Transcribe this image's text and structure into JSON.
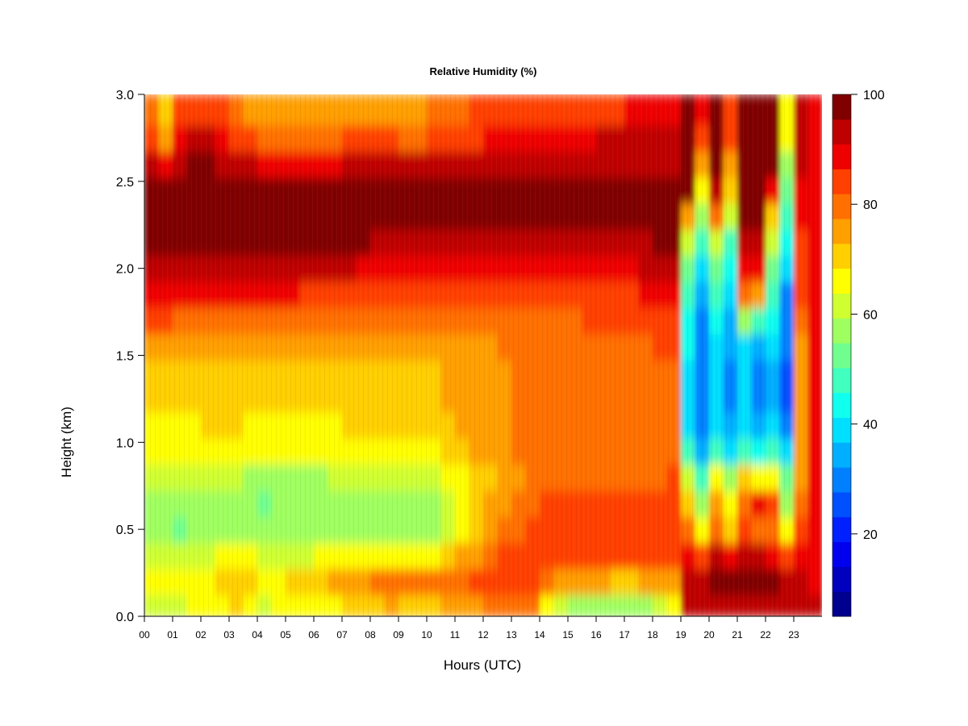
{
  "chart_data": {
    "type": "heatmap",
    "title": "Relative Humidity (%)",
    "xlabel": "Hours (UTC)",
    "ylabel": "Height (km)",
    "x_ticks": [
      "00",
      "01",
      "02",
      "03",
      "04",
      "05",
      "06",
      "07",
      "08",
      "09",
      "10",
      "11",
      "12",
      "13",
      "14",
      "15",
      "16",
      "17",
      "18",
      "19",
      "20",
      "21",
      "22",
      "23"
    ],
    "y_ticks": [
      "0.0",
      "0.5",
      "1.0",
      "1.5",
      "2.0",
      "2.5",
      "3.0"
    ],
    "xlim": [
      0,
      24
    ],
    "ylim": [
      0,
      3
    ],
    "colorbar": {
      "min": 5,
      "max": 100,
      "tick_labels": [
        "20",
        "40",
        "60",
        "80",
        "100"
      ],
      "tick_values": [
        20,
        40,
        60,
        80,
        100
      ],
      "levels": [
        {
          "lo": 5,
          "hi": 10,
          "color": "#00008F"
        },
        {
          "lo": 10,
          "hi": 15,
          "color": "#0000BF"
        },
        {
          "lo": 15,
          "hi": 20,
          "color": "#0000EF"
        },
        {
          "lo": 20,
          "hi": 25,
          "color": "#0020FF"
        },
        {
          "lo": 25,
          "hi": 30,
          "color": "#0050FF"
        },
        {
          "lo": 30,
          "hi": 35,
          "color": "#0080FF"
        },
        {
          "lo": 35,
          "hi": 40,
          "color": "#00AFFF"
        },
        {
          "lo": 40,
          "hi": 45,
          "color": "#00DFFF"
        },
        {
          "lo": 45,
          "hi": 50,
          "color": "#10FFEF"
        },
        {
          "lo": 50,
          "hi": 55,
          "color": "#40FFBF"
        },
        {
          "lo": 55,
          "hi": 60,
          "color": "#70FF8F"
        },
        {
          "lo": 60,
          "hi": 65,
          "color": "#9FFF60"
        },
        {
          "lo": 65,
          "hi": 70,
          "color": "#CFFF30"
        },
        {
          "lo": 70,
          "hi": 75,
          "color": "#FFFF00"
        },
        {
          "lo": 75,
          "hi": 80,
          "color": "#FFCF00"
        },
        {
          "lo": 80,
          "hi": 85,
          "color": "#FF9F00"
        },
        {
          "lo": 85,
          "hi": 90,
          "color": "#FF7000"
        },
        {
          "lo": 90,
          "hi": 95,
          "color": "#FF4000"
        },
        {
          "lo": 95,
          "hi": 100,
          "color": "#EF0000"
        },
        {
          "lo": 100,
          "hi": 105,
          "color": "#BF0000"
        },
        {
          "lo": 105,
          "hi": 110,
          "color": "#800000"
        }
      ]
    },
    "heights_km": [
      0.05,
      0.2,
      0.35,
      0.5,
      0.65,
      0.8,
      0.95,
      1.1,
      1.25,
      1.4,
      1.55,
      1.7,
      1.85,
      2.0,
      2.15,
      2.3,
      2.45,
      2.6,
      2.75,
      2.9
    ],
    "hours": [
      0.25,
      0.75,
      1.25,
      1.75,
      2.25,
      2.75,
      3.25,
      3.75,
      4.25,
      4.75,
      5.25,
      5.75,
      6.25,
      6.75,
      7.25,
      7.75,
      8.25,
      8.75,
      9.25,
      9.75,
      10.25,
      10.75,
      11.25,
      11.75,
      12.25,
      12.75,
      13.25,
      13.75,
      14.25,
      14.75,
      15.25,
      15.75,
      16.25,
      16.75,
      17.25,
      17.75,
      18.25,
      18.75,
      19.25,
      19.75,
      20.25,
      20.75,
      21.25,
      21.75,
      22.25,
      22.75,
      23.25,
      23.75
    ],
    "rh_percent": [
      [
        68,
        66,
        68,
        70,
        72,
        74,
        75,
        72,
        68,
        72,
        74,
        72,
        72,
        72,
        75,
        76,
        78,
        80,
        78,
        76,
        78,
        80,
        82,
        84,
        85,
        86,
        86,
        86,
        70,
        66,
        64,
        62,
        62,
        64,
        62,
        62,
        66,
        70,
        100,
        102,
        104,
        104,
        104,
        104,
        102,
        100,
        100,
        100
      ],
      [
        70,
        70,
        70,
        72,
        74,
        75,
        76,
        76,
        74,
        74,
        76,
        76,
        78,
        80,
        82,
        84,
        86,
        86,
        88,
        86,
        86,
        86,
        88,
        90,
        90,
        92,
        92,
        92,
        86,
        84,
        82,
        80,
        80,
        78,
        78,
        80,
        82,
        84,
        104,
        104,
        105,
        105,
        106,
        106,
        105,
        102,
        100,
        98
      ],
      [
        68,
        66,
        66,
        68,
        68,
        70,
        70,
        70,
        68,
        68,
        68,
        68,
        70,
        70,
        70,
        72,
        72,
        72,
        72,
        72,
        74,
        76,
        80,
        84,
        86,
        90,
        92,
        94,
        94,
        94,
        92,
        92,
        92,
        90,
        90,
        90,
        90,
        90,
        96,
        94,
        100,
        98,
        100,
        100,
        98,
        90,
        96,
        96
      ],
      [
        60,
        60,
        58,
        60,
        62,
        62,
        62,
        60,
        60,
        60,
        60,
        60,
        62,
        62,
        62,
        62,
        64,
        64,
        64,
        60,
        64,
        66,
        72,
        78,
        82,
        86,
        88,
        92,
        92,
        92,
        92,
        92,
        92,
        92,
        92,
        92,
        92,
        94,
        86,
        70,
        88,
        76,
        90,
        88,
        86,
        72,
        94,
        98
      ],
      [
        62,
        60,
        60,
        60,
        60,
        62,
        62,
        60,
        58,
        60,
        60,
        60,
        62,
        62,
        62,
        64,
        64,
        64,
        62,
        60,
        64,
        68,
        72,
        76,
        80,
        84,
        86,
        88,
        90,
        90,
        90,
        92,
        92,
        90,
        90,
        90,
        90,
        92,
        76,
        60,
        84,
        72,
        86,
        98,
        90,
        64,
        88,
        98
      ],
      [
        66,
        66,
        66,
        66,
        66,
        66,
        66,
        64,
        64,
        64,
        64,
        64,
        64,
        66,
        66,
        66,
        66,
        66,
        66,
        66,
        68,
        70,
        72,
        76,
        78,
        82,
        84,
        86,
        86,
        86,
        86,
        86,
        86,
        86,
        86,
        86,
        88,
        90,
        66,
        50,
        74,
        62,
        76,
        74,
        70,
        55,
        84,
        98
      ],
      [
        70,
        70,
        70,
        70,
        72,
        72,
        72,
        70,
        70,
        70,
        70,
        70,
        70,
        72,
        72,
        72,
        72,
        72,
        72,
        72,
        74,
        76,
        78,
        80,
        82,
        84,
        86,
        88,
        88,
        88,
        88,
        88,
        88,
        88,
        88,
        88,
        88,
        88,
        52,
        38,
        54,
        44,
        52,
        46,
        50,
        40,
        82,
        98
      ],
      [
        74,
        74,
        74,
        74,
        76,
        76,
        76,
        74,
        74,
        74,
        74,
        74,
        74,
        74,
        76,
        76,
        76,
        76,
        76,
        76,
        76,
        78,
        80,
        82,
        82,
        84,
        86,
        86,
        88,
        88,
        88,
        88,
        88,
        88,
        88,
        88,
        88,
        88,
        44,
        32,
        44,
        38,
        44,
        36,
        40,
        30,
        80,
        98
      ],
      [
        76,
        76,
        76,
        76,
        78,
        78,
        78,
        76,
        76,
        76,
        76,
        76,
        76,
        76,
        76,
        76,
        76,
        76,
        76,
        78,
        78,
        80,
        82,
        84,
        84,
        84,
        86,
        86,
        86,
        86,
        86,
        86,
        86,
        86,
        88,
        88,
        88,
        88,
        42,
        30,
        40,
        34,
        40,
        32,
        36,
        28,
        80,
        98
      ],
      [
        78,
        78,
        78,
        78,
        78,
        78,
        78,
        78,
        78,
        78,
        78,
        78,
        78,
        78,
        78,
        78,
        78,
        78,
        78,
        78,
        78,
        80,
        82,
        84,
        84,
        84,
        86,
        86,
        86,
        86,
        86,
        86,
        86,
        86,
        86,
        88,
        88,
        88,
        44,
        32,
        42,
        34,
        42,
        34,
        38,
        28,
        82,
        98
      ],
      [
        82,
        82,
        82,
        82,
        82,
        82,
        82,
        82,
        82,
        82,
        82,
        82,
        82,
        82,
        82,
        82,
        82,
        82,
        80,
        80,
        80,
        82,
        84,
        84,
        84,
        86,
        86,
        86,
        86,
        86,
        86,
        86,
        86,
        86,
        88,
        88,
        90,
        90,
        46,
        32,
        44,
        36,
        44,
        36,
        40,
        30,
        84,
        98
      ],
      [
        90,
        90,
        88,
        88,
        88,
        88,
        88,
        88,
        88,
        88,
        88,
        88,
        88,
        88,
        88,
        88,
        86,
        86,
        86,
        86,
        86,
        86,
        86,
        86,
        86,
        86,
        86,
        86,
        88,
        88,
        88,
        90,
        90,
        90,
        90,
        92,
        92,
        94,
        48,
        34,
        46,
        38,
        64,
        54,
        46,
        30,
        86,
        98
      ],
      [
        98,
        98,
        96,
        96,
        96,
        96,
        96,
        96,
        96,
        96,
        96,
        94,
        94,
        94,
        94,
        94,
        94,
        92,
        92,
        92,
        92,
        92,
        92,
        92,
        92,
        92,
        92,
        92,
        92,
        92,
        94,
        94,
        94,
        94,
        94,
        96,
        96,
        98,
        52,
        38,
        52,
        42,
        86,
        84,
        52,
        34,
        90,
        98
      ],
      [
        104,
        104,
        102,
        102,
        102,
        102,
        102,
        102,
        102,
        102,
        102,
        100,
        100,
        100,
        100,
        98,
        98,
        98,
        98,
        98,
        98,
        98,
        98,
        98,
        96,
        96,
        96,
        96,
        96,
        98,
        98,
        98,
        98,
        98,
        98,
        100,
        100,
        100,
        58,
        42,
        58,
        46,
        98,
        96,
        58,
        40,
        92,
        98
      ],
      [
        106,
        108,
        108,
        108,
        108,
        108,
        108,
        108,
        108,
        108,
        106,
        106,
        106,
        106,
        106,
        106,
        104,
        104,
        104,
        104,
        104,
        104,
        104,
        104,
        102,
        102,
        102,
        102,
        102,
        102,
        102,
        104,
        104,
        104,
        104,
        104,
        106,
        106,
        66,
        50,
        68,
        54,
        104,
        104,
        66,
        46,
        94,
        98
      ],
      [
        108,
        108,
        108,
        108,
        108,
        108,
        108,
        108,
        108,
        108,
        108,
        108,
        108,
        108,
        108,
        108,
        108,
        108,
        108,
        108,
        108,
        108,
        108,
        108,
        108,
        108,
        108,
        108,
        108,
        108,
        108,
        108,
        108,
        108,
        108,
        108,
        108,
        108,
        84,
        60,
        88,
        66,
        106,
        106,
        78,
        52,
        96,
        98
      ],
      [
        108,
        106,
        108,
        108,
        108,
        108,
        108,
        108,
        108,
        108,
        108,
        108,
        108,
        108,
        108,
        108,
        106,
        106,
        106,
        106,
        106,
        106,
        106,
        106,
        106,
        106,
        106,
        106,
        106,
        106,
        106,
        106,
        106,
        106,
        106,
        106,
        106,
        106,
        106,
        72,
        104,
        76,
        108,
        108,
        96,
        58,
        98,
        98
      ],
      [
        100,
        96,
        104,
        106,
        106,
        104,
        102,
        100,
        98,
        98,
        98,
        98,
        98,
        98,
        100,
        100,
        100,
        100,
        100,
        100,
        100,
        102,
        102,
        102,
        102,
        102,
        102,
        104,
        104,
        104,
        104,
        104,
        104,
        104,
        104,
        104,
        104,
        104,
        108,
        84,
        108,
        84,
        108,
        108,
        108,
        64,
        100,
        98
      ],
      [
        92,
        84,
        96,
        100,
        100,
        96,
        94,
        90,
        88,
        88,
        88,
        88,
        88,
        88,
        90,
        90,
        90,
        90,
        88,
        88,
        92,
        92,
        94,
        94,
        96,
        96,
        96,
        98,
        98,
        98,
        98,
        98,
        100,
        100,
        100,
        100,
        100,
        100,
        108,
        94,
        108,
        90,
        108,
        108,
        108,
        70,
        100,
        98
      ],
      [
        86,
        76,
        90,
        94,
        94,
        90,
        88,
        84,
        82,
        82,
        82,
        82,
        82,
        82,
        84,
        84,
        84,
        84,
        82,
        82,
        86,
        86,
        88,
        90,
        90,
        90,
        92,
        92,
        92,
        94,
        94,
        94,
        94,
        94,
        96,
        96,
        96,
        96,
        108,
        96,
        108,
        90,
        108,
        108,
        108,
        70,
        100,
        98
      ]
    ]
  }
}
